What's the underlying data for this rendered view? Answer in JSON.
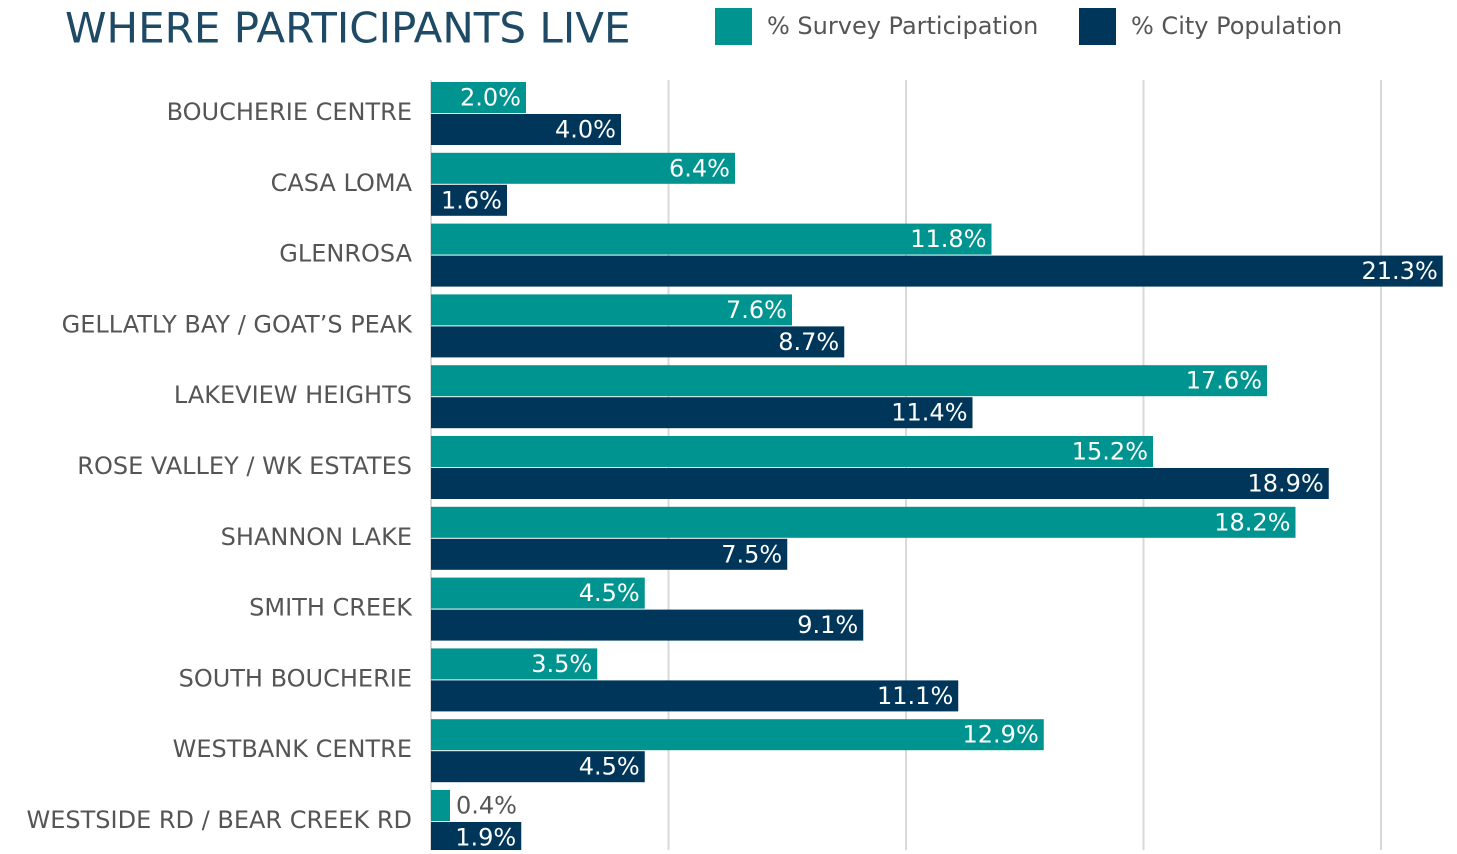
{
  "chart_data": {
    "type": "grouped-horizontal-bar",
    "title": "WHERE PARTICIPANTS LIVE",
    "categories": [
      "BOUCHERIE CENTRE",
      "CASA LOMA",
      "GLENROSA",
      "GELLATLY BAY / GOAT’S PEAK",
      "LAKEVIEW HEIGHTS",
      "ROSE VALLEY / WK ESTATES",
      "SHANNON LAKE",
      "SMITH CREEK",
      "SOUTH BOUCHERIE",
      "WESTBANK CENTRE",
      "WESTSIDE RD / BEAR CREEK RD"
    ],
    "series": [
      {
        "name": "% Survey Participation",
        "color": "#009490",
        "values": [
          2.0,
          6.4,
          11.8,
          7.6,
          17.6,
          15.2,
          18.2,
          4.5,
          3.5,
          12.9,
          0.4
        ],
        "value_labels": [
          "2.0%",
          "6.4%",
          "11.8%",
          "7.6%",
          "17.6%",
          "15.2%",
          "18.2%",
          "4.5%",
          "3.5%",
          "12.9%",
          "0.4%"
        ]
      },
      {
        "name": "% City Population",
        "color": "#00365a",
        "values": [
          4.0,
          1.6,
          21.3,
          8.7,
          11.4,
          18.9,
          7.5,
          9.1,
          11.1,
          4.5,
          1.9
        ],
        "value_labels": [
          "4.0%",
          "1.6%",
          "21.3%",
          "8.7%",
          "11.4%",
          "18.9%",
          "7.5%",
          "9.1%",
          "11.1%",
          "4.5%",
          "1.9%"
        ]
      }
    ],
    "xlim": [
      0,
      21.6
    ],
    "xticks": [
      0,
      5,
      10,
      15,
      20
    ],
    "grid": true,
    "legend": "top"
  }
}
